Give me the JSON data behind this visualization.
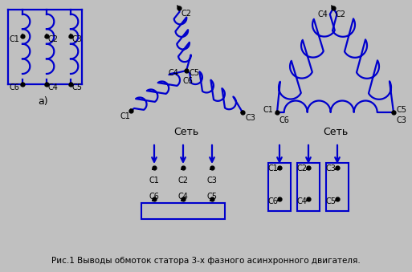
{
  "bg_color": "#c0c0c0",
  "line_color": "#0000cc",
  "text_color": "#000000",
  "title": "Рис.1 Выводы обмоток статора 3-х фазного асинхронного двигателя.",
  "label_seti": "Сеть",
  "label_a": "а)"
}
